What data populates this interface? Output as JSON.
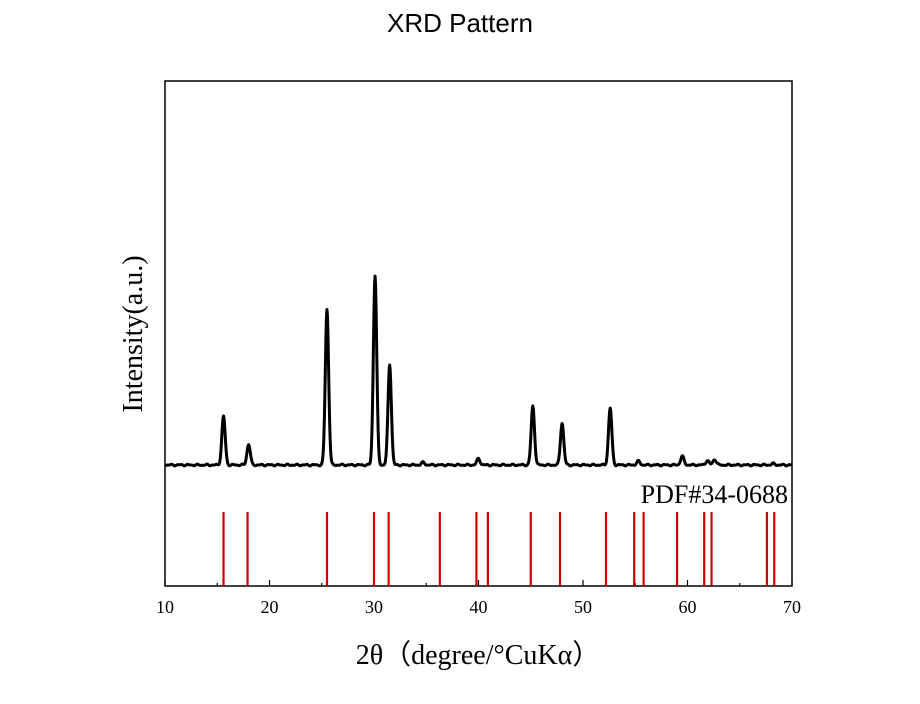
{
  "chart_data": {
    "type": "line",
    "title": "XRD Pattern",
    "xlabel": "2θ（degree/°CuKα）",
    "ylabel": "Intensity(a.u.)",
    "xlim": [
      10,
      70
    ],
    "xticks": [
      10,
      20,
      30,
      40,
      50,
      60,
      70
    ],
    "grid": false,
    "series": [
      {
        "type": "line",
        "color": "#000000",
        "baseline": 100,
        "peaks": [
          {
            "x": 15.6,
            "y": 178
          },
          {
            "x": 18.0,
            "y": 133
          },
          {
            "x": 25.5,
            "y": 349
          },
          {
            "x": 30.1,
            "y": 403
          },
          {
            "x": 31.5,
            "y": 261
          },
          {
            "x": 34.7,
            "y": 104
          },
          {
            "x": 40.0,
            "y": 110
          },
          {
            "x": 45.2,
            "y": 194
          },
          {
            "x": 48.0,
            "y": 167
          },
          {
            "x": 52.6,
            "y": 191
          },
          {
            "x": 55.3,
            "y": 106
          },
          {
            "x": 59.5,
            "y": 114
          },
          {
            "x": 61.9,
            "y": 107
          },
          {
            "x": 62.6,
            "y": 109
          },
          {
            "x": 68.2,
            "y": 102
          }
        ]
      },
      {
        "name": "PDF#34-0688",
        "type": "reference-sticks",
        "color": "#cc0000",
        "x": [
          15.6,
          17.9,
          25.5,
          30.0,
          31.4,
          36.3,
          39.8,
          40.9,
          45.0,
          47.8,
          52.2,
          54.9,
          55.8,
          59.0,
          61.6,
          62.3,
          67.6,
          68.3
        ]
      }
    ]
  }
}
